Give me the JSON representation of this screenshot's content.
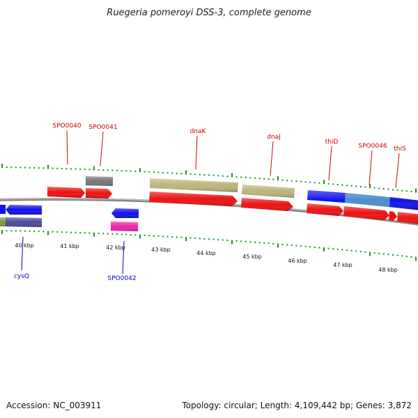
{
  "title": "Ruegeria pomeroyi DSS-3, complete genome",
  "footer": {
    "accession": "Accession: NC_003911",
    "summary": "Topology: circular; Length: 4,109,442 bp; Genes: 3,872"
  },
  "colors": {
    "forward_gene": "#ee1111",
    "reverse_gene": "#1111ee",
    "cds_tan": "#bdb47a",
    "gray_feature": "#777777",
    "magenta_feature": "#ee22aa",
    "olive_feature": "#7a9a3a",
    "purple_feature": "#4a4a9a",
    "light_blue_feature": "#4a8ccc",
    "tick_green": "#119911",
    "backbone": "#888888",
    "label_forward": "#cc0000",
    "label_reverse": "#0000bb"
  },
  "scale": {
    "ticks": [
      "40 kbp",
      "41 kbp",
      "42 kbp",
      "43 kbp",
      "44 kbp",
      "45 kbp",
      "46 kbp",
      "47 kbp",
      "48 kbp"
    ]
  },
  "gene_labels": {
    "top": [
      "SPO0040",
      "SPO0041",
      "dnaK",
      "dnaJ",
      "thiD",
      "SPO0046",
      "thiS"
    ],
    "bottom": [
      "cysQ",
      "SPO0042"
    ]
  }
}
